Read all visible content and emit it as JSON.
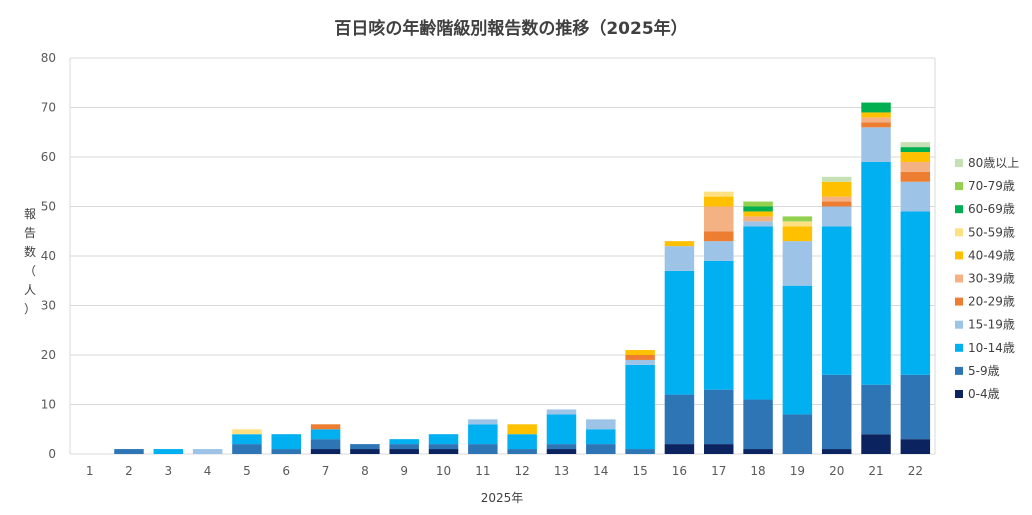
{
  "chart_data": {
    "type": "bar",
    "stacked": true,
    "title": "百日咳の年齢階級別報告数の推移（2025年）",
    "xlabel": "2025年",
    "ylabel": "報告数（人）",
    "ylim": [
      0,
      80
    ],
    "yticks": [
      0,
      10,
      20,
      30,
      40,
      50,
      60,
      70,
      80
    ],
    "grid": true,
    "legend_position": "right",
    "categories": [
      "1",
      "2",
      "3",
      "4",
      "5",
      "6",
      "7",
      "8",
      "9",
      "10",
      "11",
      "12",
      "13",
      "14",
      "15",
      "16",
      "17",
      "18",
      "19",
      "20",
      "21",
      "22"
    ],
    "series": [
      {
        "name": "0-4歳",
        "color": "#0b2460",
        "values": [
          0,
          0,
          0,
          0,
          0,
          0,
          1,
          1,
          1,
          1,
          0,
          0,
          1,
          0,
          0,
          2,
          2,
          1,
          0,
          1,
          4,
          3
        ]
      },
      {
        "name": "5-9歳",
        "color": "#2e75b6",
        "values": [
          0,
          1,
          0,
          0,
          2,
          1,
          2,
          1,
          1,
          1,
          2,
          1,
          1,
          2,
          1,
          10,
          11,
          10,
          8,
          15,
          10,
          13
        ]
      },
      {
        "name": "10-14歳",
        "color": "#00b0f0",
        "values": [
          0,
          0,
          1,
          0,
          2,
          3,
          2,
          0,
          1,
          2,
          4,
          3,
          6,
          3,
          17,
          25,
          26,
          35,
          26,
          30,
          45,
          33
        ]
      },
      {
        "name": "15-19歳",
        "color": "#9dc3e6",
        "values": [
          0,
          0,
          0,
          1,
          0,
          0,
          0,
          0,
          0,
          0,
          1,
          0,
          1,
          2,
          1,
          5,
          4,
          1,
          9,
          4,
          7,
          6
        ]
      },
      {
        "name": "20-29歳",
        "color": "#ed7d31",
        "values": [
          0,
          0,
          0,
          0,
          0,
          0,
          1,
          0,
          0,
          0,
          0,
          0,
          0,
          0,
          1,
          0,
          2,
          0,
          0,
          1,
          1,
          2
        ]
      },
      {
        "name": "30-39歳",
        "color": "#f4b183",
        "values": [
          0,
          0,
          0,
          0,
          0,
          0,
          0,
          0,
          0,
          0,
          0,
          0,
          0,
          0,
          0,
          0,
          5,
          1,
          0,
          1,
          1,
          2
        ]
      },
      {
        "name": "40-49歳",
        "color": "#ffc000",
        "values": [
          0,
          0,
          0,
          0,
          0,
          0,
          0,
          0,
          0,
          0,
          0,
          2,
          0,
          0,
          1,
          1,
          2,
          1,
          3,
          3,
          1,
          2
        ]
      },
      {
        "name": "50-59歳",
        "color": "#ffe082",
        "values": [
          0,
          0,
          0,
          0,
          1,
          0,
          0,
          0,
          0,
          0,
          0,
          0,
          0,
          0,
          0,
          0,
          1,
          0,
          1,
          0,
          0,
          0
        ]
      },
      {
        "name": "60-69歳",
        "color": "#00b050",
        "values": [
          0,
          0,
          0,
          0,
          0,
          0,
          0,
          0,
          0,
          0,
          0,
          0,
          0,
          0,
          0,
          0,
          0,
          1,
          0,
          0,
          2,
          1
        ]
      },
      {
        "name": "70-79歳",
        "color": "#92d050",
        "values": [
          0,
          0,
          0,
          0,
          0,
          0,
          0,
          0,
          0,
          0,
          0,
          0,
          0,
          0,
          0,
          0,
          0,
          1,
          1,
          0,
          0,
          0
        ]
      },
      {
        "name": "80歳以上",
        "color": "#c5e0b4",
        "values": [
          0,
          0,
          0,
          0,
          0,
          0,
          0,
          0,
          0,
          0,
          0,
          0,
          0,
          0,
          0,
          0,
          0,
          0,
          0,
          1,
          0,
          1
        ]
      }
    ]
  }
}
